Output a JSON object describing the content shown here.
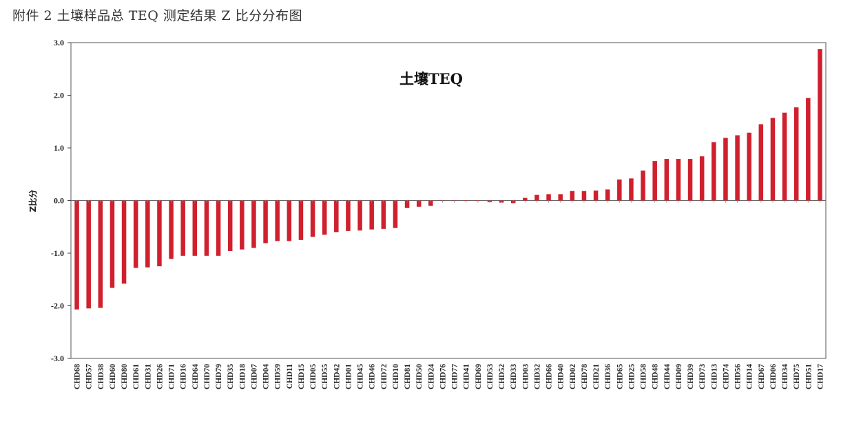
{
  "caption": "附件 2  土壤样品总 TEQ 测定结果 Z 比分分布图",
  "chart_data": {
    "type": "bar",
    "title": "土壤TEQ",
    "ylabel": "Z比分",
    "xlabel": "",
    "ylim": [
      -3.0,
      3.0
    ],
    "yticks": [
      3.0,
      2.0,
      1.0,
      0.0,
      -1.0,
      -2.0,
      -3.0
    ],
    "ytick_labels": [
      "3.0",
      "2.0",
      "1.0",
      "0.0",
      "-1.0",
      "-2.0",
      "-3.0"
    ],
    "grid": false,
    "bar_color": "#d0202e",
    "categories": [
      "CHD68",
      "CHD57",
      "CHD38",
      "CHD60",
      "CHD80",
      "CHD61",
      "CHD31",
      "CHD26",
      "CHD71",
      "CHD16",
      "CHD64",
      "CHD70",
      "CHD79",
      "CHD35",
      "CHD18",
      "CHD07",
      "CHD04",
      "CHD59",
      "CHD11",
      "CHD15",
      "CHD05",
      "CHD55",
      "CHD42",
      "CHD01",
      "CHD45",
      "CHD46",
      "CHD72",
      "CHD10",
      "CHD81",
      "CHD50",
      "CHD24",
      "CHD76",
      "CHD77",
      "CHD41",
      "CHD69",
      "CHD53",
      "CHD52",
      "CHD33",
      "CHD03",
      "CHD32",
      "CHD66",
      "CHD40",
      "CHD02",
      "CHD78",
      "CHD21",
      "CHD36",
      "CHD65",
      "CHD25",
      "CHD58",
      "CHD48",
      "CHD44",
      "CHD09",
      "CHD39",
      "CHD73",
      "CHD13",
      "CHD74",
      "CHD56",
      "CHD14",
      "CHD67",
      "CHD06",
      "CHD34",
      "CHD75",
      "CHD51",
      "CHD17"
    ],
    "values": [
      -2.07,
      -2.05,
      -2.04,
      -1.66,
      -1.58,
      -1.28,
      -1.27,
      -1.25,
      -1.11,
      -1.05,
      -1.05,
      -1.05,
      -1.05,
      -0.96,
      -0.93,
      -0.9,
      -0.81,
      -0.77,
      -0.77,
      -0.75,
      -0.69,
      -0.65,
      -0.6,
      -0.58,
      -0.57,
      -0.55,
      -0.54,
      -0.52,
      -0.14,
      -0.12,
      -0.1,
      0.0,
      0.0,
      0.0,
      0.0,
      -0.03,
      -0.04,
      -0.05,
      0.05,
      0.11,
      0.12,
      0.12,
      0.18,
      0.18,
      0.19,
      0.21,
      0.4,
      0.42,
      0.57,
      0.75,
      0.79,
      0.79,
      0.79,
      0.84,
      1.11,
      1.19,
      1.24,
      1.29,
      1.45,
      1.57,
      1.67,
      1.77,
      1.95,
      2.88
    ]
  }
}
